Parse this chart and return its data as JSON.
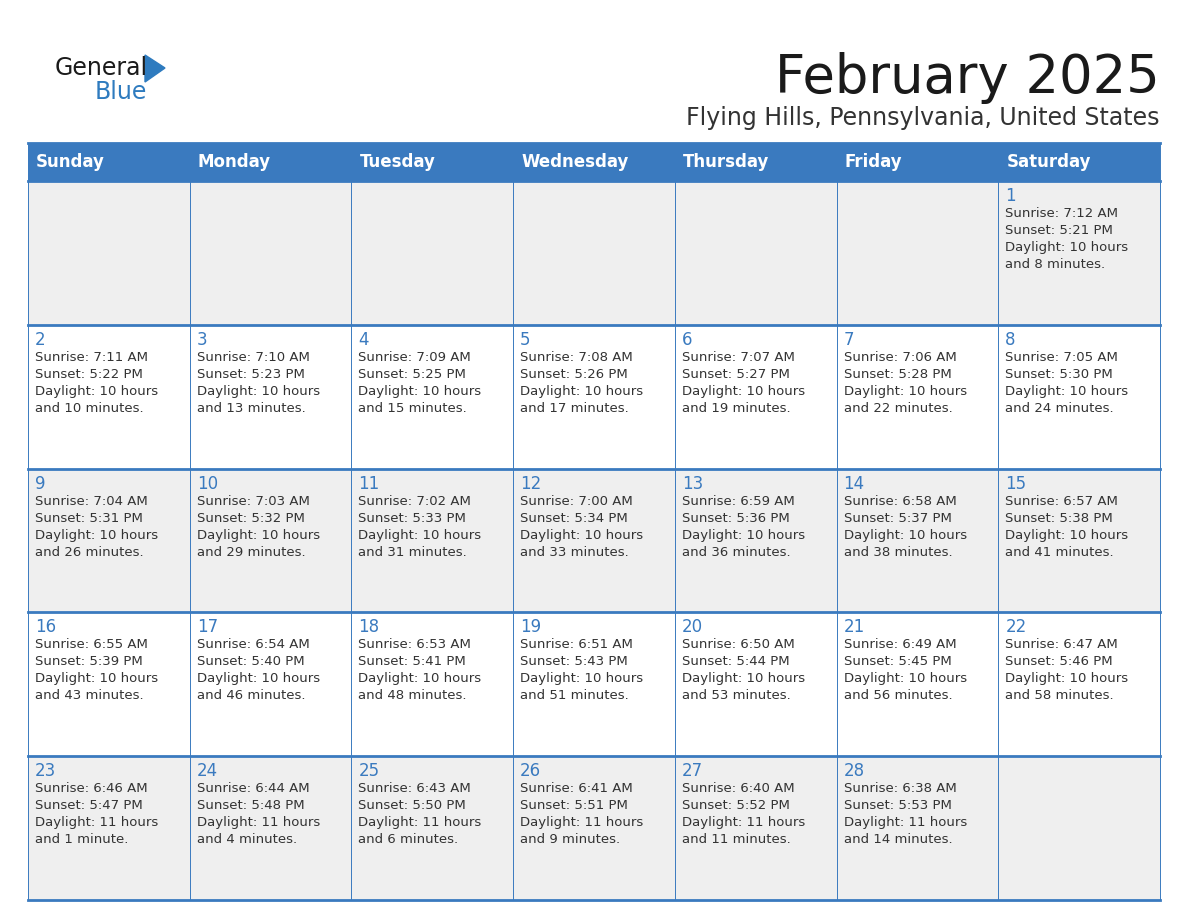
{
  "title": "February 2025",
  "subtitle": "Flying Hills, Pennsylvania, United States",
  "days_of_week": [
    "Sunday",
    "Monday",
    "Tuesday",
    "Wednesday",
    "Thursday",
    "Friday",
    "Saturday"
  ],
  "header_bg": "#3a7abf",
  "header_text_color": "#ffffff",
  "cell_bg_odd": "#efefef",
  "cell_bg_even": "#ffffff",
  "day_num_color": "#3a7abf",
  "info_text_color": "#333333",
  "border_color": "#3a7abf",
  "background_color": "#ffffff",
  "title_color": "#1a1a1a",
  "subtitle_color": "#333333",
  "logo_general_color": "#1a1a1a",
  "logo_blue_color": "#2e7bbf",
  "weeks": [
    [
      {
        "day": null,
        "info": ""
      },
      {
        "day": null,
        "info": ""
      },
      {
        "day": null,
        "info": ""
      },
      {
        "day": null,
        "info": ""
      },
      {
        "day": null,
        "info": ""
      },
      {
        "day": null,
        "info": ""
      },
      {
        "day": 1,
        "info": "Sunrise: 7:12 AM\nSunset: 5:21 PM\nDaylight: 10 hours\nand 8 minutes."
      }
    ],
    [
      {
        "day": 2,
        "info": "Sunrise: 7:11 AM\nSunset: 5:22 PM\nDaylight: 10 hours\nand 10 minutes."
      },
      {
        "day": 3,
        "info": "Sunrise: 7:10 AM\nSunset: 5:23 PM\nDaylight: 10 hours\nand 13 minutes."
      },
      {
        "day": 4,
        "info": "Sunrise: 7:09 AM\nSunset: 5:25 PM\nDaylight: 10 hours\nand 15 minutes."
      },
      {
        "day": 5,
        "info": "Sunrise: 7:08 AM\nSunset: 5:26 PM\nDaylight: 10 hours\nand 17 minutes."
      },
      {
        "day": 6,
        "info": "Sunrise: 7:07 AM\nSunset: 5:27 PM\nDaylight: 10 hours\nand 19 minutes."
      },
      {
        "day": 7,
        "info": "Sunrise: 7:06 AM\nSunset: 5:28 PM\nDaylight: 10 hours\nand 22 minutes."
      },
      {
        "day": 8,
        "info": "Sunrise: 7:05 AM\nSunset: 5:30 PM\nDaylight: 10 hours\nand 24 minutes."
      }
    ],
    [
      {
        "day": 9,
        "info": "Sunrise: 7:04 AM\nSunset: 5:31 PM\nDaylight: 10 hours\nand 26 minutes."
      },
      {
        "day": 10,
        "info": "Sunrise: 7:03 AM\nSunset: 5:32 PM\nDaylight: 10 hours\nand 29 minutes."
      },
      {
        "day": 11,
        "info": "Sunrise: 7:02 AM\nSunset: 5:33 PM\nDaylight: 10 hours\nand 31 minutes."
      },
      {
        "day": 12,
        "info": "Sunrise: 7:00 AM\nSunset: 5:34 PM\nDaylight: 10 hours\nand 33 minutes."
      },
      {
        "day": 13,
        "info": "Sunrise: 6:59 AM\nSunset: 5:36 PM\nDaylight: 10 hours\nand 36 minutes."
      },
      {
        "day": 14,
        "info": "Sunrise: 6:58 AM\nSunset: 5:37 PM\nDaylight: 10 hours\nand 38 minutes."
      },
      {
        "day": 15,
        "info": "Sunrise: 6:57 AM\nSunset: 5:38 PM\nDaylight: 10 hours\nand 41 minutes."
      }
    ],
    [
      {
        "day": 16,
        "info": "Sunrise: 6:55 AM\nSunset: 5:39 PM\nDaylight: 10 hours\nand 43 minutes."
      },
      {
        "day": 17,
        "info": "Sunrise: 6:54 AM\nSunset: 5:40 PM\nDaylight: 10 hours\nand 46 minutes."
      },
      {
        "day": 18,
        "info": "Sunrise: 6:53 AM\nSunset: 5:41 PM\nDaylight: 10 hours\nand 48 minutes."
      },
      {
        "day": 19,
        "info": "Sunrise: 6:51 AM\nSunset: 5:43 PM\nDaylight: 10 hours\nand 51 minutes."
      },
      {
        "day": 20,
        "info": "Sunrise: 6:50 AM\nSunset: 5:44 PM\nDaylight: 10 hours\nand 53 minutes."
      },
      {
        "day": 21,
        "info": "Sunrise: 6:49 AM\nSunset: 5:45 PM\nDaylight: 10 hours\nand 56 minutes."
      },
      {
        "day": 22,
        "info": "Sunrise: 6:47 AM\nSunset: 5:46 PM\nDaylight: 10 hours\nand 58 minutes."
      }
    ],
    [
      {
        "day": 23,
        "info": "Sunrise: 6:46 AM\nSunset: 5:47 PM\nDaylight: 11 hours\nand 1 minute."
      },
      {
        "day": 24,
        "info": "Sunrise: 6:44 AM\nSunset: 5:48 PM\nDaylight: 11 hours\nand 4 minutes."
      },
      {
        "day": 25,
        "info": "Sunrise: 6:43 AM\nSunset: 5:50 PM\nDaylight: 11 hours\nand 6 minutes."
      },
      {
        "day": 26,
        "info": "Sunrise: 6:41 AM\nSunset: 5:51 PM\nDaylight: 11 hours\nand 9 minutes."
      },
      {
        "day": 27,
        "info": "Sunrise: 6:40 AM\nSunset: 5:52 PM\nDaylight: 11 hours\nand 11 minutes."
      },
      {
        "day": 28,
        "info": "Sunrise: 6:38 AM\nSunset: 5:53 PM\nDaylight: 11 hours\nand 14 minutes."
      },
      {
        "day": null,
        "info": ""
      }
    ]
  ]
}
